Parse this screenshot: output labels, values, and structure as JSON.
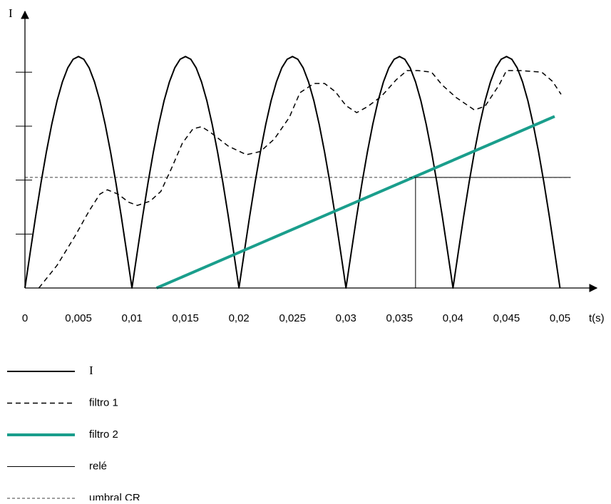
{
  "chart_data": {
    "type": "line",
    "y_label": "I",
    "x_label": "t(s)",
    "xlim": [
      0,
      0.0533
    ],
    "ylim": [
      0,
      5.1
    ],
    "xticks": [
      0,
      {
        "value": 0.005,
        "label": "0,005"
      },
      {
        "value": 0.01,
        "label": "0,01"
      },
      {
        "value": 0.015,
        "label": "0,015"
      },
      {
        "value": 0.02,
        "label": "0,02"
      },
      {
        "value": 0.025,
        "label": "0,025"
      },
      {
        "value": 0.03,
        "label": "0,03"
      },
      {
        "value": 0.035,
        "label": "0,035"
      },
      {
        "value": 0.04,
        "label": "0,04"
      },
      {
        "value": 0.045,
        "label": "0,045"
      },
      {
        "value": 0.05,
        "label": "0,05"
      }
    ],
    "yticks": [
      1,
      2,
      3,
      4
    ],
    "series": [
      {
        "name": "I",
        "color": "#000000",
        "line_width": 2,
        "line_style": "solid",
        "x": [
          0,
          0.0005,
          0.001,
          0.0015,
          0.002,
          0.0025,
          0.003,
          0.0035,
          0.004,
          0.0045,
          0.005,
          0.0055,
          0.006,
          0.0065,
          0.007,
          0.0075,
          0.008,
          0.0085,
          0.009,
          0.0095,
          0.01,
          0.0105,
          0.011,
          0.0115,
          0.012,
          0.0125,
          0.013,
          0.0135,
          0.014,
          0.0145,
          0.015,
          0.0155,
          0.016,
          0.0165,
          0.017,
          0.0175,
          0.018,
          0.0185,
          0.019,
          0.0195,
          0.02,
          0.0205,
          0.021,
          0.0215,
          0.022,
          0.0225,
          0.023,
          0.0235,
          0.024,
          0.0245,
          0.025,
          0.0255,
          0.026,
          0.0265,
          0.027,
          0.0275,
          0.028,
          0.0285,
          0.029,
          0.0295,
          0.03,
          0.0305,
          0.031,
          0.0315,
          0.032,
          0.0325,
          0.033,
          0.0335,
          0.034,
          0.0345,
          0.035,
          0.0355,
          0.036,
          0.0365,
          0.037,
          0.0375,
          0.038,
          0.0385,
          0.039,
          0.0395,
          0.04,
          0.0405,
          0.041,
          0.0415,
          0.042,
          0.0425,
          0.043,
          0.0435,
          0.044,
          0.0445,
          0.045,
          0.0455,
          0.046,
          0.0465,
          0.047,
          0.0475,
          0.048,
          0.0485,
          0.049,
          0.0495,
          0.05
        ],
        "values": [
          0,
          0.67,
          1.33,
          1.95,
          2.52,
          3.03,
          3.47,
          3.82,
          4.08,
          4.24,
          4.29,
          4.24,
          4.08,
          3.82,
          3.47,
          3.03,
          2.52,
          1.95,
          1.33,
          0.67,
          0,
          0.67,
          1.33,
          1.95,
          2.52,
          3.03,
          3.47,
          3.82,
          4.08,
          4.24,
          4.29,
          4.24,
          4.08,
          3.82,
          3.47,
          3.03,
          2.52,
          1.95,
          1.33,
          0.67,
          0,
          0.67,
          1.33,
          1.95,
          2.52,
          3.03,
          3.47,
          3.82,
          4.08,
          4.24,
          4.29,
          4.24,
          4.08,
          3.82,
          3.47,
          3.03,
          2.52,
          1.95,
          1.33,
          0.67,
          0,
          0.67,
          1.33,
          1.95,
          2.52,
          3.03,
          3.47,
          3.82,
          4.08,
          4.24,
          4.29,
          4.24,
          4.08,
          3.82,
          3.47,
          3.03,
          2.52,
          1.95,
          1.33,
          0.67,
          0,
          0.67,
          1.33,
          1.95,
          2.52,
          3.03,
          3.47,
          3.82,
          4.08,
          4.24,
          4.29,
          4.24,
          4.08,
          3.82,
          3.47,
          3.03,
          2.52,
          1.95,
          1.33,
          0.67,
          0
        ]
      },
      {
        "name": "filtro 1",
        "color": "#000000",
        "line_width": 1.5,
        "line_style": "dashed",
        "x": [
          0.0013,
          0.003,
          0.0047,
          0.006,
          0.007,
          0.0077,
          0.0087,
          0.0097,
          0.0105,
          0.0117,
          0.0127,
          0.0137,
          0.0147,
          0.0157,
          0.0165,
          0.0173,
          0.019,
          0.0207,
          0.022,
          0.0233,
          0.0247,
          0.0257,
          0.027,
          0.028,
          0.029,
          0.03,
          0.031,
          0.032,
          0.0333,
          0.0347,
          0.0357,
          0.0367,
          0.038,
          0.039,
          0.0403,
          0.042,
          0.043,
          0.0443,
          0.045,
          0.0463,
          0.0483,
          0.0493,
          0.0501
        ],
        "values": [
          0,
          0.42,
          0.97,
          1.43,
          1.74,
          1.82,
          1.74,
          1.59,
          1.53,
          1.61,
          1.79,
          2.22,
          2.68,
          2.95,
          2.99,
          2.89,
          2.63,
          2.47,
          2.53,
          2.76,
          3.16,
          3.62,
          3.79,
          3.79,
          3.64,
          3.38,
          3.25,
          3.36,
          3.55,
          3.86,
          4.03,
          4.03,
          4.0,
          3.76,
          3.53,
          3.3,
          3.37,
          3.76,
          4.03,
          4.03,
          4.0,
          3.83,
          3.59
        ]
      },
      {
        "name": "filtro 2",
        "color": "#1a9e8c",
        "line_width": 4,
        "line_style": "solid",
        "x": [
          0.0123,
          0.0495
        ],
        "values": [
          0,
          3.18
        ]
      },
      {
        "name": "relé",
        "color": "#000000",
        "line_width": 1,
        "line_style": "solid",
        "x": [
          0,
          0.0365,
          0.0365,
          0.051
        ],
        "values": [
          0,
          0,
          2.05,
          2.05
        ]
      },
      {
        "name": "umbral CR",
        "color": "#000000",
        "line_width": 0.8,
        "line_style": "fine-dashed",
        "x": [
          0,
          0.051
        ],
        "values": [
          2.05,
          2.05
        ]
      }
    ]
  }
}
